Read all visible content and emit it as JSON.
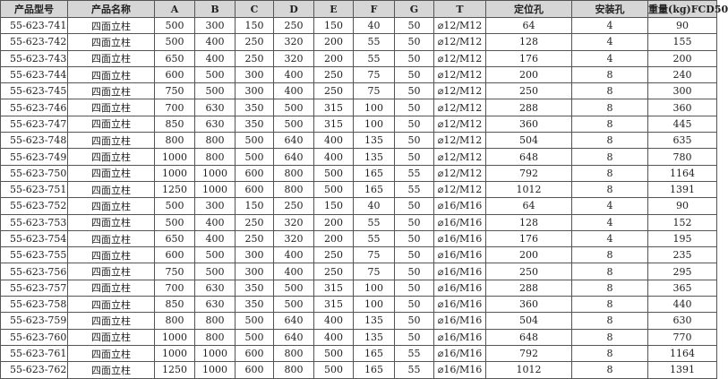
{
  "headers": [
    "产品型号",
    "产品名称",
    "A",
    "B",
    "C",
    "D",
    "E",
    "F",
    "G",
    "T",
    "定位孔",
    "安装孔",
    "重量(kg)FCD50"
  ],
  "rows": [
    [
      "55-623-741",
      "四面立柱",
      "500",
      "300",
      "150",
      "250",
      "150",
      "40",
      "50",
      "⌀12/M12",
      "64",
      "4",
      "90"
    ],
    [
      "55-623-742",
      "四面立柱",
      "500",
      "400",
      "250",
      "320",
      "200",
      "55",
      "50",
      "⌀12/M12",
      "128",
      "4",
      "155"
    ],
    [
      "55-623-743",
      "四面立柱",
      "650",
      "400",
      "250",
      "320",
      "200",
      "55",
      "50",
      "⌀12/M12",
      "176",
      "4",
      "200"
    ],
    [
      "55-623-744",
      "四面立柱",
      "600",
      "500",
      "300",
      "400",
      "250",
      "75",
      "50",
      "⌀12/M12",
      "200",
      "8",
      "240"
    ],
    [
      "55-623-745",
      "四面立柱",
      "750",
      "500",
      "300",
      "400",
      "250",
      "75",
      "50",
      "⌀12/M12",
      "250",
      "8",
      "300"
    ],
    [
      "55-623-746",
      "四面立柱",
      "700",
      "630",
      "350",
      "500",
      "315",
      "100",
      "50",
      "⌀12/M12",
      "288",
      "8",
      "360"
    ],
    [
      "55-623-747",
      "四面立柱",
      "850",
      "630",
      "350",
      "500",
      "315",
      "100",
      "50",
      "⌀12/M12",
      "360",
      "8",
      "445"
    ],
    [
      "55-623-748",
      "四面立柱",
      "800",
      "800",
      "500",
      "640",
      "400",
      "135",
      "50",
      "⌀12/M12",
      "504",
      "8",
      "635"
    ],
    [
      "55-623-749",
      "四面立柱",
      "1000",
      "800",
      "500",
      "640",
      "400",
      "135",
      "50",
      "⌀12/M12",
      "648",
      "8",
      "780"
    ],
    [
      "55-623-750",
      "四面立柱",
      "1000",
      "1000",
      "600",
      "800",
      "500",
      "165",
      "55",
      "⌀12/M12",
      "792",
      "8",
      "1164"
    ],
    [
      "55-623-751",
      "四面立柱",
      "1250",
      "1000",
      "600",
      "800",
      "500",
      "165",
      "55",
      "⌀12/M12",
      "1012",
      "8",
      "1391"
    ],
    [
      "55-623-752",
      "四面立柱",
      "500",
      "300",
      "150",
      "250",
      "150",
      "40",
      "50",
      "⌀16/M16",
      "64",
      "4",
      "90"
    ],
    [
      "55-623-753",
      "四面立柱",
      "500",
      "400",
      "250",
      "320",
      "200",
      "55",
      "50",
      "⌀16/M16",
      "128",
      "4",
      "152"
    ],
    [
      "55-623-754",
      "四面立柱",
      "650",
      "400",
      "250",
      "320",
      "200",
      "55",
      "50",
      "⌀16/M16",
      "176",
      "4",
      "195"
    ],
    [
      "55-623-755",
      "四面立柱",
      "600",
      "500",
      "300",
      "400",
      "250",
      "75",
      "50",
      "⌀16/M16",
      "200",
      "8",
      "235"
    ],
    [
      "55-623-756",
      "四面立柱",
      "750",
      "500",
      "300",
      "400",
      "250",
      "75",
      "50",
      "⌀16/M16",
      "250",
      "8",
      "295"
    ],
    [
      "55-623-757",
      "四面立柱",
      "700",
      "630",
      "350",
      "500",
      "315",
      "100",
      "50",
      "⌀16/M16",
      "288",
      "8",
      "365"
    ],
    [
      "55-623-758",
      "四面立柱",
      "850",
      "630",
      "350",
      "500",
      "315",
      "100",
      "50",
      "⌀16/M16",
      "360",
      "8",
      "440"
    ],
    [
      "55-623-759",
      "四面立柱",
      "800",
      "800",
      "500",
      "640",
      "400",
      "135",
      "50",
      "⌀16/M16",
      "504",
      "8",
      "630"
    ],
    [
      "55-623-760",
      "四面立柱",
      "1000",
      "800",
      "500",
      "640",
      "400",
      "135",
      "50",
      "⌀16/M16",
      "648",
      "8",
      "770"
    ],
    [
      "55-623-761",
      "四面立柱",
      "1000",
      "1000",
      "600",
      "800",
      "500",
      "165",
      "55",
      "⌀16/M16",
      "792",
      "8",
      "1164"
    ],
    [
      "55-623-762",
      "四面立柱",
      "1250",
      "1000",
      "600",
      "800",
      "500",
      "165",
      "55",
      "⌀16/M16",
      "1012",
      "8",
      "1391"
    ]
  ]
}
